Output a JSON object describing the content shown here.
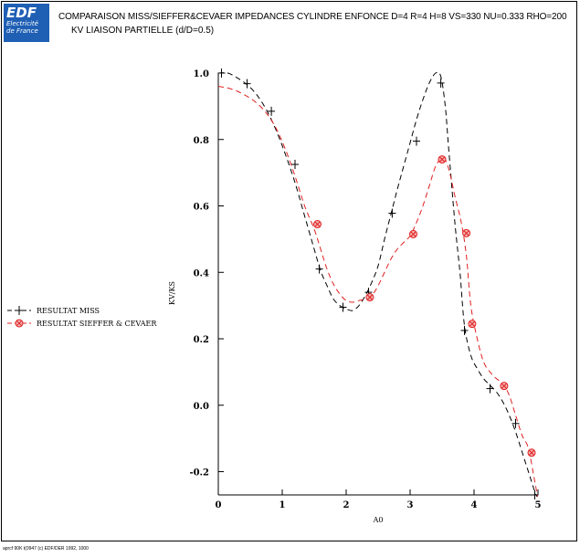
{
  "header": {
    "logo_brand": "EDF",
    "logo_line1": "Electricité",
    "logo_line2": "de France",
    "title": "COMPARAISON MISS/SIEFFER&CEVAER IMPEDANCES CYLINDRE ENFONCE D=4 R=4 H=8 VS=330 NU=0.333 RHO=200",
    "subtitle": "KV LIAISON PARTIELLE (d/D=0.5)"
  },
  "footer": {
    "text": "aprcf 90K t(0947 (c) EDF/DER 1992, 1000"
  },
  "colors": {
    "miss": "#000000",
    "sieffer": "#e02020",
    "logo": "#1f5fb4"
  },
  "chart_data": {
    "type": "line",
    "title": "COMPARAISON MISS/SIEFFER&CEVAER IMPEDANCES CYLINDRE ENFONCE D=4 R=4 H=8 VS=330 NU=0.333 RHO=200",
    "subtitle": "KV LIAISON PARTIELLE (d/D=0.5)",
    "xlabel": "A0",
    "ylabel": "KV/KS",
    "xlim": [
      0,
      5
    ],
    "ylim": [
      -0.27,
      1.0
    ],
    "xticks": [
      "0",
      "1",
      "2",
      "3",
      "4",
      "5"
    ],
    "xtick_values": [
      0,
      1,
      2,
      3,
      4,
      5
    ],
    "yticks": [
      "1.0",
      "0.8",
      "0.6",
      "0.4",
      "0.2",
      "0.0",
      "-0.2"
    ],
    "ytick_values": [
      1.0,
      0.8,
      0.6,
      0.4,
      0.2,
      0.0,
      -0.2
    ],
    "grid": false,
    "legend_position": "left-middle",
    "series": [
      {
        "name": "RESULTAT MISS",
        "line_style": "dashed",
        "marker": "plus",
        "color": "#000000",
        "curve": [
          [
            0,
            1.0
          ],
          [
            0.15,
            1.0
          ],
          [
            0.3,
            0.985
          ],
          [
            0.45,
            0.965
          ],
          [
            0.6,
            0.935
          ],
          [
            0.75,
            0.89
          ],
          [
            0.9,
            0.83
          ],
          [
            1.05,
            0.755
          ],
          [
            1.2,
            0.67
          ],
          [
            1.35,
            0.57
          ],
          [
            1.5,
            0.47
          ],
          [
            1.6,
            0.405
          ],
          [
            1.7,
            0.36
          ],
          [
            1.8,
            0.32
          ],
          [
            1.9,
            0.3
          ],
          [
            2.0,
            0.29
          ],
          [
            2.1,
            0.285
          ],
          [
            2.2,
            0.3
          ],
          [
            2.3,
            0.33
          ],
          [
            2.4,
            0.37
          ],
          [
            2.5,
            0.42
          ],
          [
            2.6,
            0.5
          ],
          [
            2.7,
            0.575
          ],
          [
            2.8,
            0.65
          ],
          [
            2.9,
            0.72
          ],
          [
            3.0,
            0.79
          ],
          [
            3.1,
            0.86
          ],
          [
            3.2,
            0.92
          ],
          [
            3.3,
            0.97
          ],
          [
            3.4,
            1.0
          ],
          [
            3.48,
            0.99
          ],
          [
            3.55,
            0.9
          ],
          [
            3.6,
            0.78
          ],
          [
            3.7,
            0.55
          ],
          [
            3.78,
            0.4
          ],
          [
            3.85,
            0.24
          ],
          [
            3.95,
            0.15
          ],
          [
            4.05,
            0.11
          ],
          [
            4.15,
            0.08
          ],
          [
            4.25,
            0.06
          ],
          [
            4.35,
            0.04
          ],
          [
            4.45,
            0.01
          ],
          [
            4.55,
            -0.03
          ],
          [
            4.65,
            -0.08
          ],
          [
            4.75,
            -0.14
          ],
          [
            4.85,
            -0.2
          ],
          [
            4.95,
            -0.26
          ],
          [
            5.0,
            -0.28
          ]
        ],
        "markers": [
          [
            0.05,
            1.0
          ],
          [
            0.45,
            0.968
          ],
          [
            0.83,
            0.885
          ],
          [
            1.2,
            0.725
          ],
          [
            1.58,
            0.41
          ],
          [
            1.95,
            0.295
          ],
          [
            2.35,
            0.34
          ],
          [
            2.72,
            0.578
          ],
          [
            3.1,
            0.795
          ],
          [
            3.48,
            0.97
          ],
          [
            3.85,
            0.225
          ],
          [
            4.25,
            0.05
          ],
          [
            4.65,
            -0.055
          ],
          [
            4.95,
            -0.27
          ]
        ]
      },
      {
        "name": "RESULTAT SIEFFER & CEVAER",
        "line_style": "dashed",
        "marker": "circle-x",
        "color": "#e02020",
        "curve": [
          [
            0,
            0.96
          ],
          [
            0.15,
            0.955
          ],
          [
            0.3,
            0.945
          ],
          [
            0.45,
            0.93
          ],
          [
            0.6,
            0.91
          ],
          [
            0.75,
            0.88
          ],
          [
            0.9,
            0.835
          ],
          [
            1.05,
            0.77
          ],
          [
            1.2,
            0.69
          ],
          [
            1.35,
            0.6
          ],
          [
            1.5,
            0.53
          ],
          [
            1.6,
            0.47
          ],
          [
            1.7,
            0.41
          ],
          [
            1.8,
            0.365
          ],
          [
            1.9,
            0.335
          ],
          [
            2.0,
            0.315
          ],
          [
            2.1,
            0.31
          ],
          [
            2.2,
            0.315
          ],
          [
            2.3,
            0.32
          ],
          [
            2.4,
            0.33
          ],
          [
            2.5,
            0.36
          ],
          [
            2.6,
            0.4
          ],
          [
            2.7,
            0.44
          ],
          [
            2.8,
            0.47
          ],
          [
            2.9,
            0.49
          ],
          [
            3.0,
            0.51
          ],
          [
            3.1,
            0.55
          ],
          [
            3.2,
            0.6
          ],
          [
            3.3,
            0.66
          ],
          [
            3.4,
            0.72
          ],
          [
            3.5,
            0.745
          ],
          [
            3.55,
            0.74
          ],
          [
            3.62,
            0.7
          ],
          [
            3.7,
            0.63
          ],
          [
            3.8,
            0.55
          ],
          [
            3.88,
            0.45
          ],
          [
            3.95,
            0.3
          ],
          [
            4.05,
            0.2
          ],
          [
            4.15,
            0.13
          ],
          [
            4.25,
            0.1
          ],
          [
            4.35,
            0.08
          ],
          [
            4.45,
            0.065
          ],
          [
            4.55,
            0.03
          ],
          [
            4.65,
            -0.03
          ],
          [
            4.75,
            -0.09
          ],
          [
            4.85,
            -0.13
          ],
          [
            4.95,
            -0.23
          ],
          [
            5.0,
            -0.28
          ]
        ],
        "markers": [
          [
            1.55,
            0.545
          ],
          [
            2.37,
            0.325
          ],
          [
            3.05,
            0.515
          ],
          [
            3.5,
            0.74
          ],
          [
            3.88,
            0.518
          ],
          [
            3.97,
            0.245
          ],
          [
            4.47,
            0.058
          ],
          [
            4.9,
            -0.143
          ]
        ]
      }
    ]
  }
}
